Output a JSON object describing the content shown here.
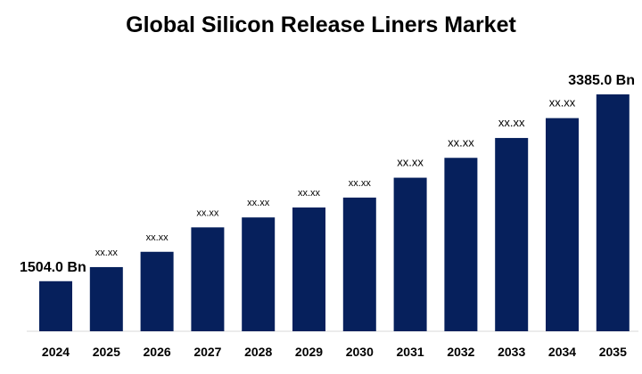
{
  "colors": {
    "bar": "#06205c",
    "axis": "#d9d9d9",
    "text": "#000000"
  },
  "chart_data": {
    "type": "bar",
    "title": "Global Silicon Release Liners Market",
    "xlabel": "",
    "ylabel": "",
    "categories": [
      "2024",
      "2025",
      "2026",
      "2027",
      "2028",
      "2029",
      "2030",
      "2031",
      "2032",
      "2033",
      "2034",
      "2035"
    ],
    "values": [
      1504.0,
      1646,
      1800,
      2046,
      2146,
      2246,
      2346,
      2546,
      2746,
      2946,
      3146,
      3385.0
    ],
    "data_labels": [
      "1504.0 Bn",
      "xx.xx",
      "xx.xx",
      "xx.xx",
      "xx.xx",
      "xx.xx",
      "xx.xx",
      "xx.xx",
      "xx.xx",
      "xx.xx",
      "xx.xx",
      "3385.0 Bn"
    ],
    "ylim": [
      1000,
      3600
    ],
    "grid": false,
    "legend": "none"
  }
}
